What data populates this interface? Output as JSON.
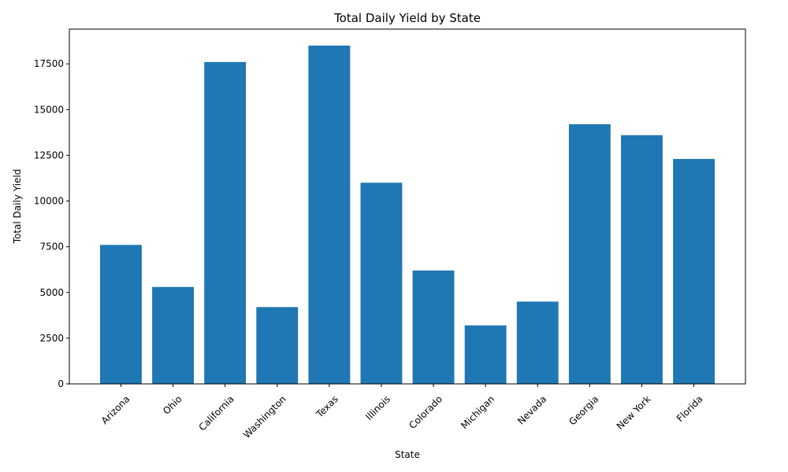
{
  "chart_data": {
    "type": "bar",
    "title": "Total Daily Yield by State",
    "xlabel": "State",
    "ylabel": "Total Daily Yield",
    "categories": [
      "Arizona",
      "Ohio",
      "California",
      "Washington",
      "Texas",
      "Illinois",
      "Colorado",
      "Michigan",
      "Nevada",
      "Georgia",
      "New York",
      "Florida"
    ],
    "values": [
      7600,
      5300,
      17600,
      4200,
      18500,
      11000,
      6200,
      3200,
      4500,
      14200,
      13600,
      12300
    ],
    "ylim": [
      0,
      19400
    ],
    "yticks": [
      0,
      2500,
      5000,
      7500,
      10000,
      12500,
      15000,
      17500
    ],
    "bar_color": "#1f77b4",
    "grid": false,
    "legend": "none"
  }
}
